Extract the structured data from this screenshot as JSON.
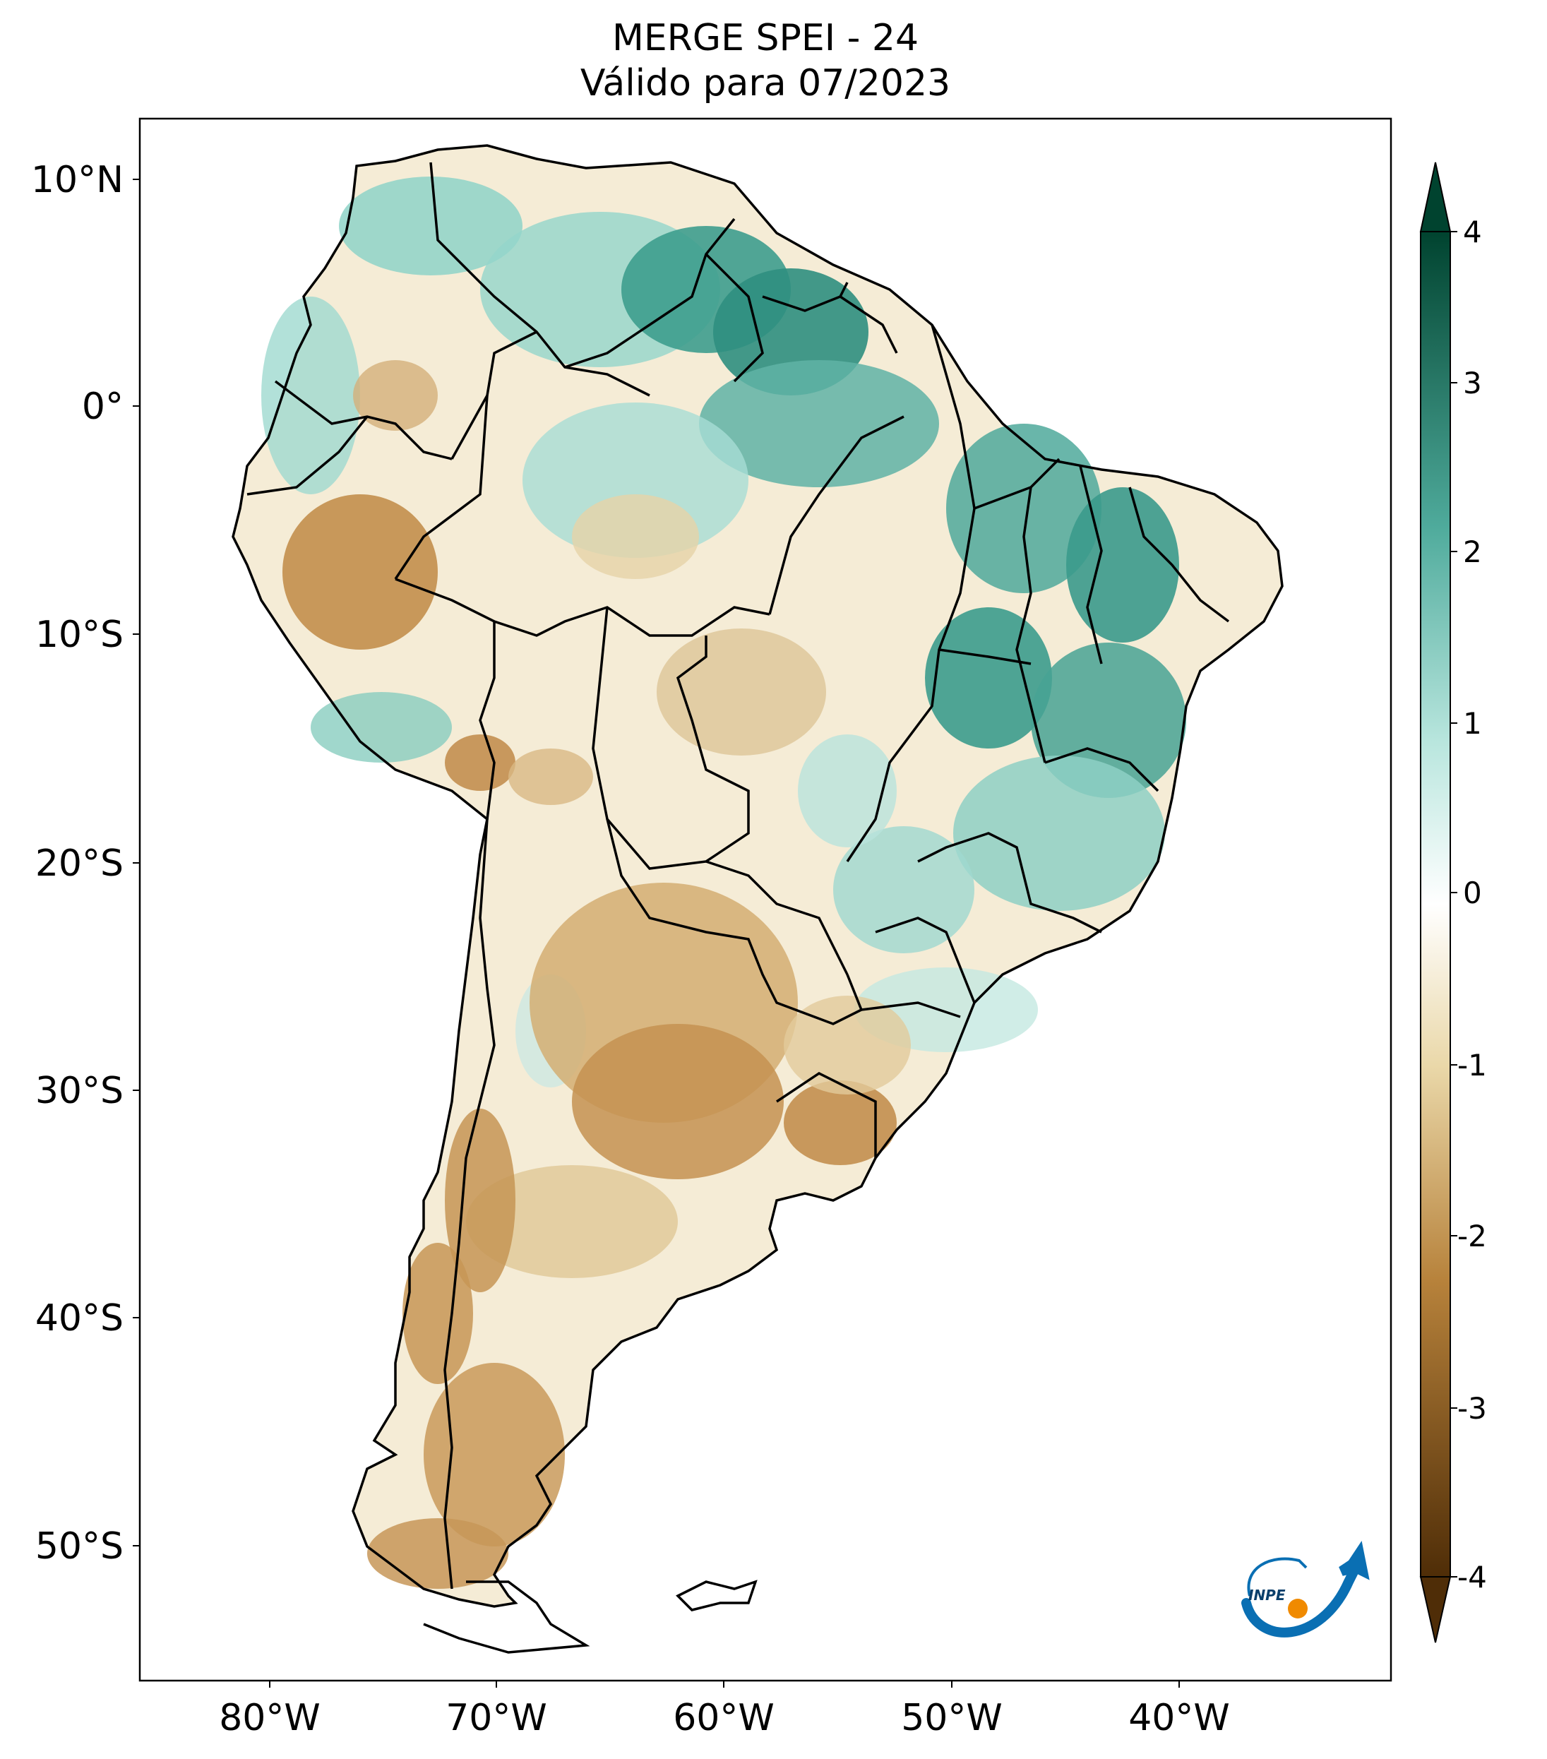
{
  "title": {
    "line1": "MERGE   SPEI - 24",
    "line2": "Válido para 07/2023"
  },
  "map": {
    "region": "South America",
    "lat_ticks": [
      "10°N",
      "0°",
      "10°S",
      "20°S",
      "30°S",
      "40°S",
      "50°S"
    ],
    "lon_ticks": [
      "80°W",
      "70°W",
      "60°W",
      "50°W",
      "40°W"
    ]
  },
  "colorbar": {
    "ticks": [
      "4",
      "3",
      "2",
      "1",
      "0",
      "-1",
      "-2",
      "-3",
      "-4"
    ],
    "colors": {
      "max": "#00432f",
      "high": "#1e8a7c",
      "mid_high": "#7fcdc0",
      "zero": "#ffffff",
      "mid_low": "#ead8a9",
      "low": "#b7823b",
      "min": "#4f2d07"
    }
  },
  "logo": {
    "text": "INPE",
    "colors": {
      "primary": "#0a6fb3",
      "dot": "#f08a00"
    }
  }
}
